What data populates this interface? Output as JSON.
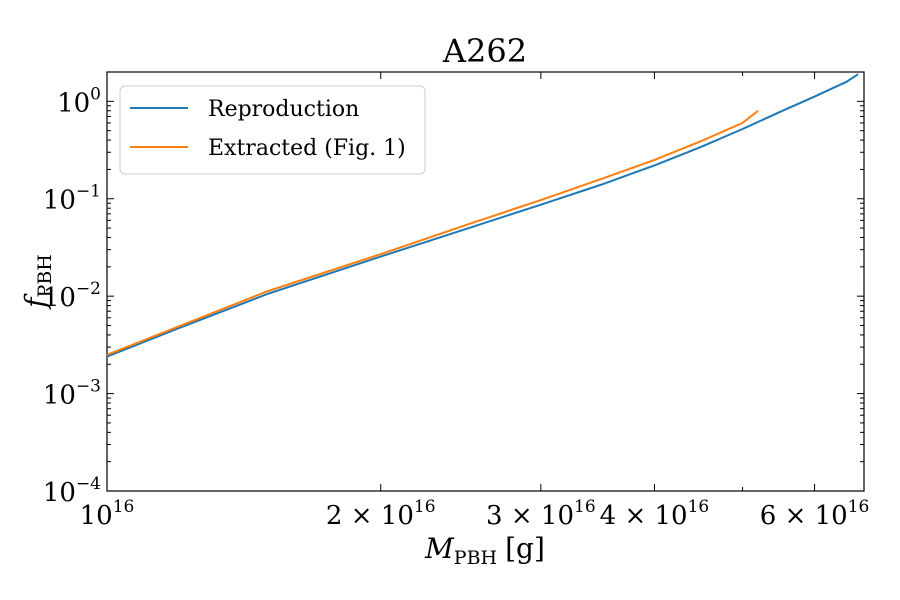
{
  "chart_data": {
    "type": "line",
    "title": "A262",
    "xlabel": {
      "main": "M",
      "sub": "PBH",
      "unit": "[g]"
    },
    "ylabel": {
      "main": "f",
      "sub": "PBH"
    },
    "x_scale": "log",
    "y_scale": "log",
    "xlim": [
      1e+16,
      6.8e+16
    ],
    "ylim": [
      0.0001,
      2
    ],
    "x_ticks": [
      {
        "value": 1e+16,
        "coef": "",
        "mant": "10",
        "exp": "16"
      },
      {
        "value": 2e+16,
        "coef": "2 × ",
        "mant": "10",
        "exp": "16"
      },
      {
        "value": 3e+16,
        "coef": "3 × ",
        "mant": "10",
        "exp": "16"
      },
      {
        "value": 4e+16,
        "coef": "4 × ",
        "mant": "10",
        "exp": "16"
      },
      {
        "value": 6e+16,
        "coef": "6 × ",
        "mant": "10",
        "exp": "16"
      }
    ],
    "x_minor_ticks": [
      5e+16
    ],
    "y_ticks": [
      {
        "value": 1,
        "mant": "10",
        "exp": "0"
      },
      {
        "value": 0.1,
        "mant": "10",
        "exp": "−1"
      },
      {
        "value": 0.01,
        "mant": "10",
        "exp": "−2"
      },
      {
        "value": 0.001,
        "mant": "10",
        "exp": "−3"
      },
      {
        "value": 0.0001,
        "mant": "10",
        "exp": "−4"
      }
    ],
    "grid": false,
    "legend_position": "top-left",
    "series": [
      {
        "name": "Reproduction",
        "color": "#1f77b4",
        "x": [
          1e+16,
          1.2e+16,
          1.5e+16,
          2e+16,
          2.5e+16,
          3e+16,
          3.5e+16,
          4e+16,
          4.5e+16,
          5e+16,
          5.5e+16,
          6e+16,
          6.5e+16,
          6.7e+16
        ],
        "y": [
          0.0024,
          0.0047,
          0.0105,
          0.0255,
          0.05,
          0.087,
          0.14,
          0.22,
          0.34,
          0.52,
          0.78,
          1.12,
          1.58,
          1.9
        ]
      },
      {
        "name": "Extracted (Fig. 1)",
        "color": "#ff7f0e",
        "x": [
          1e+16,
          1.2e+16,
          1.5e+16,
          2e+16,
          2.5e+16,
          3e+16,
          3.5e+16,
          4e+16,
          4.5e+16,
          5e+16,
          5.2e+16
        ],
        "y": [
          0.0025,
          0.0049,
          0.0112,
          0.027,
          0.055,
          0.097,
          0.16,
          0.25,
          0.39,
          0.6,
          0.8
        ]
      }
    ]
  }
}
